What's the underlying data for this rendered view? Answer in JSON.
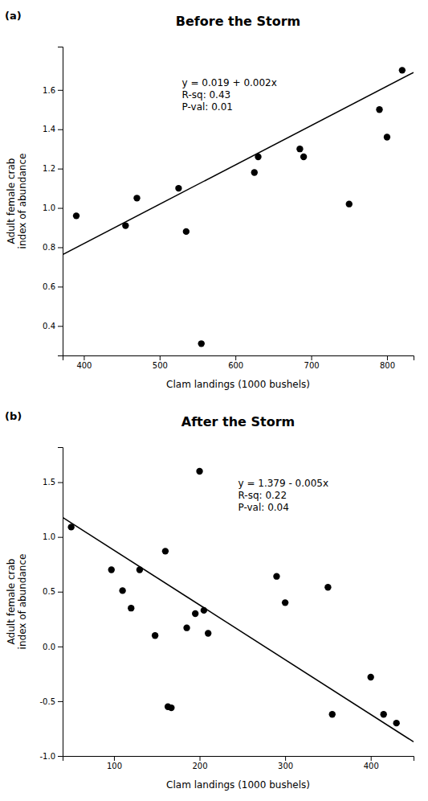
{
  "chart_data": [
    {
      "type": "scatter",
      "title": "Before the Storm",
      "panel_label": "(a)",
      "x_label": "Clam landings (1000 bushels)",
      "y_label": "Adult female crab\nindex of abundance",
      "annotations": [
        "y = 0.019 + 0.002x",
        "R-sq: 0.43",
        "P-val: 0.01"
      ],
      "series": [
        {
          "type": "scatter",
          "marker": "circle",
          "color": "#000000",
          "x": [
            390,
            455,
            470,
            525,
            535,
            555,
            625,
            630,
            685,
            690,
            750,
            790,
            800,
            820
          ],
          "values": [
            0.96,
            0.91,
            1.05,
            1.1,
            0.88,
            0.31,
            1.18,
            1.26,
            1.3,
            1.26,
            1.02,
            1.5,
            1.36,
            1.7
          ]
        },
        {
          "type": "line",
          "line_style": "solid",
          "color": "#000000",
          "x": [
            372,
            835
          ],
          "values": [
            0.763,
            1.689
          ]
        }
      ],
      "xlim": [
        372,
        835
      ],
      "ylim": [
        0.25,
        1.82
      ],
      "xticks": [
        400,
        500,
        600,
        700,
        800
      ],
      "yticks": [
        0.4,
        0.6,
        0.8,
        {
          "value": 1.0,
          "label": "1.0"
        },
        1.2,
        1.4,
        1.6
      ],
      "grid": false
    },
    {
      "type": "scatter",
      "title": "After the Storm",
      "panel_label": "(b)",
      "x_label": "Clam landings (1000 bushels)",
      "y_label": "Adult female crab\nindex of abundance",
      "annotations": [
        "y = 1.379 - 0.005x",
        "R-sq: 0.22",
        "P-val: 0.04"
      ],
      "series": [
        {
          "type": "scatter",
          "marker": "circle",
          "color": "#000000",
          "x": [
            50,
            97,
            110,
            120,
            130,
            148,
            160,
            163,
            167,
            185,
            195,
            200,
            205,
            210,
            290,
            300,
            350,
            355,
            400,
            415,
            430
          ],
          "values": [
            1.09,
            0.7,
            0.51,
            0.35,
            0.7,
            0.1,
            0.87,
            -0.55,
            -0.56,
            0.17,
            0.3,
            1.6,
            0.33,
            0.12,
            0.64,
            0.4,
            0.54,
            -0.62,
            -0.28,
            -0.62,
            -0.7
          ]
        },
        {
          "type": "line",
          "line_style": "solid",
          "color": "#000000",
          "x": [
            40,
            450
          ],
          "values": [
            1.179,
            -0.871
          ]
        }
      ],
      "xlim": [
        40,
        450
      ],
      "ylim": [
        -1.0,
        1.82
      ],
      "xticks": [
        100,
        200,
        300,
        400
      ],
      "yticks": [
        {
          "value": -1.0,
          "label": "-1.0"
        },
        -0.5,
        {
          "value": 0.0,
          "label": "0.0"
        },
        0.5,
        {
          "value": 1.0,
          "label": "1.0"
        },
        1.5
      ],
      "grid": false
    }
  ]
}
